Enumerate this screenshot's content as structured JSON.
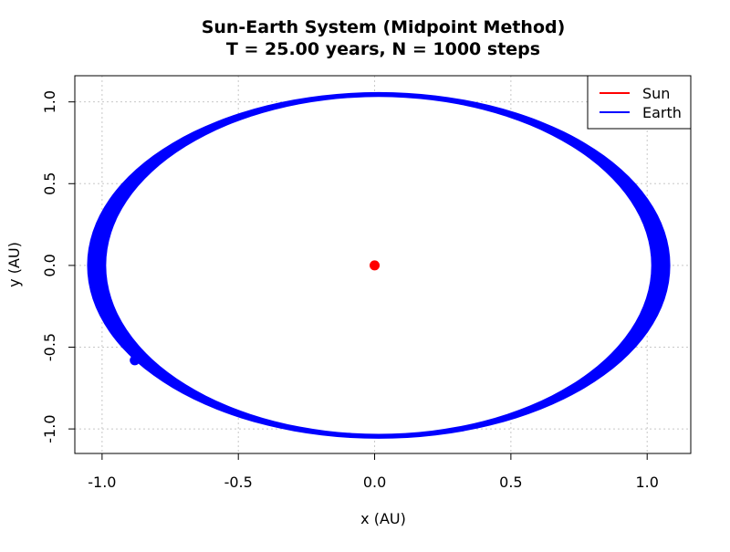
{
  "chart_data": {
    "type": "scatter",
    "title": "Sun-Earth System (Midpoint Method)",
    "subtitle": "T = 25.00 years, N = 1000 steps",
    "xlabel": "x (AU)",
    "ylabel": "y (AU)",
    "xlim": [
      -1.1,
      1.16
    ],
    "ylim": [
      -1.15,
      1.16
    ],
    "x_ticks": [
      -1.0,
      -0.5,
      0.0,
      0.5,
      1.0
    ],
    "x_tick_labels": [
      "-1.0",
      "-0.5",
      "0.0",
      "0.5",
      "1.0"
    ],
    "y_ticks": [
      -1.0,
      -0.5,
      0.0,
      0.5,
      1.0
    ],
    "y_tick_labels": [
      "-1.0",
      "-0.5",
      "0.0",
      "0.5",
      "1.0"
    ],
    "grid": true,
    "legend_position": "top-right",
    "legend": [
      {
        "label": "Sun",
        "color": "#ff0000"
      },
      {
        "label": "Earth",
        "color": "#0000ff"
      }
    ],
    "series": [
      {
        "name": "Sun",
        "color": "#ff0000",
        "points": [
          {
            "x": 0.0,
            "y": 0.0
          }
        ]
      },
      {
        "name": "Earth",
        "color": "#0000ff",
        "orbit_band": {
          "center_x": 0.015,
          "center_y": 0.0,
          "semi_axis_x": [
            1.0,
            1.07
          ],
          "semi_axis_y": [
            1.03,
            1.06
          ]
        },
        "final_position": {
          "x": -0.88,
          "y": -0.58
        }
      }
    ]
  }
}
